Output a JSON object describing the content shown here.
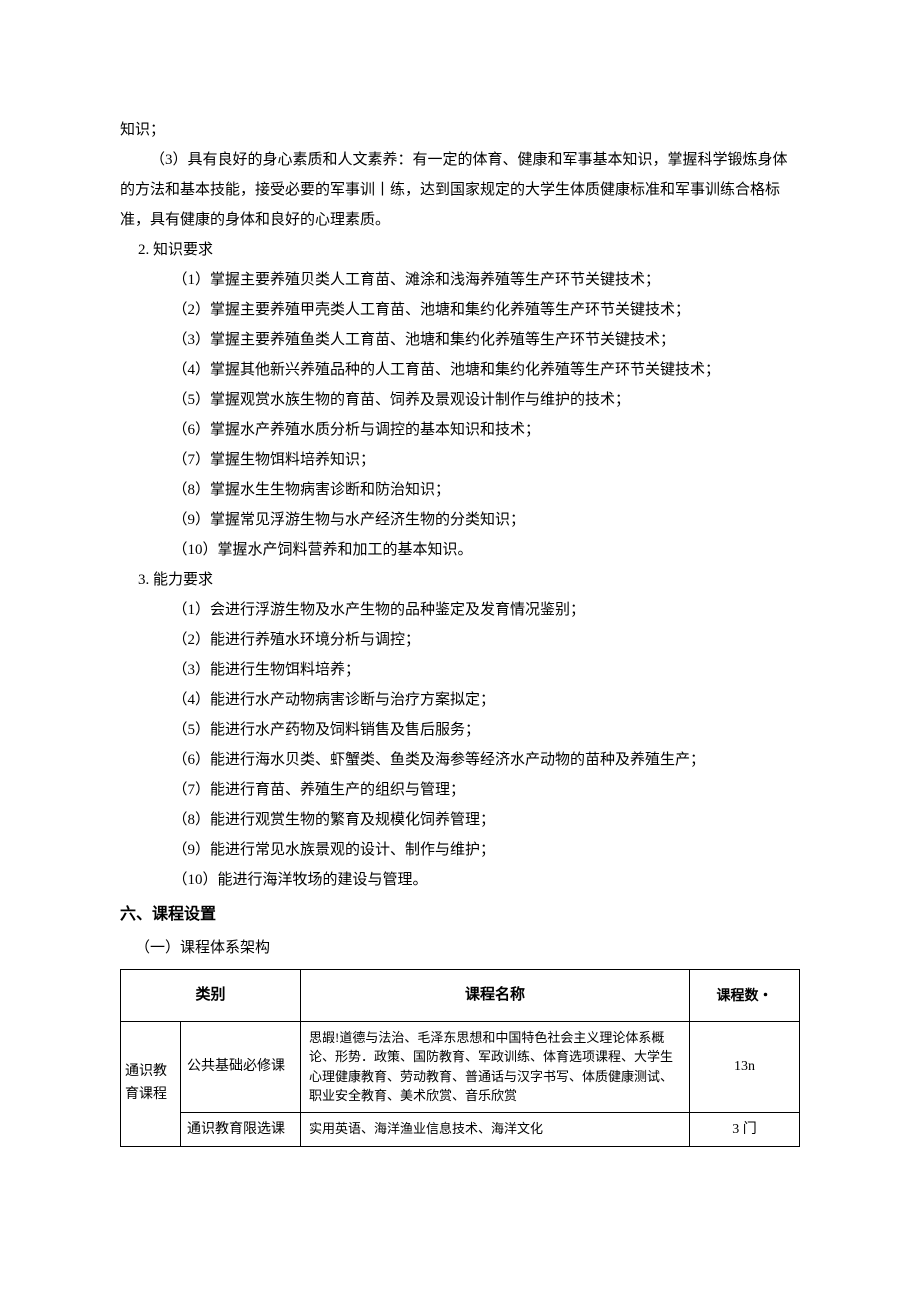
{
  "intro": {
    "line1": "知识；",
    "line2": "（3）具有良好的身心素质和人文素养：有一定的体育、健康和军事基本知识，掌握科学锻炼身体的方法和基本技能，接受必要的军事训丨练，达到国家规定的大学生体质健康标准和军事训练合格标准，具有健康的身体和良好的心理素质。"
  },
  "knowledge": {
    "heading": "2. 知识要求",
    "items": [
      "（1）掌握主要养殖贝类人工育苗、滩涂和浅海养殖等生产环节关键技术；",
      "（2）掌握主要养殖甲壳类人工育苗、池塘和集约化养殖等生产环节关键技术；",
      "（3）掌握主要养殖鱼类人工育苗、池塘和集约化养殖等生产环节关键技术；",
      "（4）掌握其他新兴养殖品种的人工育苗、池塘和集约化养殖等生产环节关键技术；",
      "（5）掌握观赏水族生物的育苗、饲养及景观设计制作与维护的技术；",
      "（6）掌握水产养殖水质分析与调控的基本知识和技术；",
      "（7）掌握生物饵料培养知识；",
      "（8）掌握水生生物病害诊断和防治知识；",
      "（9）掌握常见浮游生物与水产经济生物的分类知识；",
      "（10）掌握水产饲料营养和加工的基本知识。"
    ]
  },
  "ability": {
    "heading": "3. 能力要求",
    "items": [
      "（1）会进行浮游生物及水产生物的品种鉴定及发育情况鉴别；",
      "（2）能进行养殖水环境分析与调控；",
      "（3）能进行生物饵料培养；",
      "（4）能进行水产动物病害诊断与治疗方案拟定；",
      "（5）能进行水产药物及饲料销售及售后服务；",
      "（6）能进行海水贝类、虾蟹类、鱼类及海参等经济水产动物的苗种及养殖生产；",
      "（7）能进行育苗、养殖生产的组织与管理；",
      "（8）能进行观赏生物的繁育及规模化饲养管理；",
      "（9）能进行常见水族景观的设计、制作与维护；",
      "（10）能进行海洋牧场的建设与管理。"
    ]
  },
  "section6": {
    "title": "六、课程设置",
    "subsection": "（一）课程体系架构"
  },
  "table": {
    "headers": {
      "category": "类别",
      "courseName": "课程名称",
      "courseCount": "课程数・"
    },
    "catLabel": "通识教育课程",
    "rows": [
      {
        "sub": "公共基础必修课",
        "name": "思嘏!道德与法治、毛泽东思想和中国特色社会主义理论体系概论、形势．政策、国防教育、军政训练、体育选项课程、大学生心理健康教育、劳动教育、普通话与汉字书写、体质健康测试、职业安全教育、美术欣赏、音乐欣赏",
        "count": "13n"
      },
      {
        "sub": "通识教育限选课",
        "name": "实用英语、海洋渔业信息技术、海洋文化",
        "count": "3 门"
      }
    ]
  },
  "style": {
    "background_color": "#ffffff",
    "text_color": "#000000",
    "border_color": "#000000",
    "body_fontsize": 15,
    "table_fontsize": 13,
    "heading_fontsize": 16
  }
}
